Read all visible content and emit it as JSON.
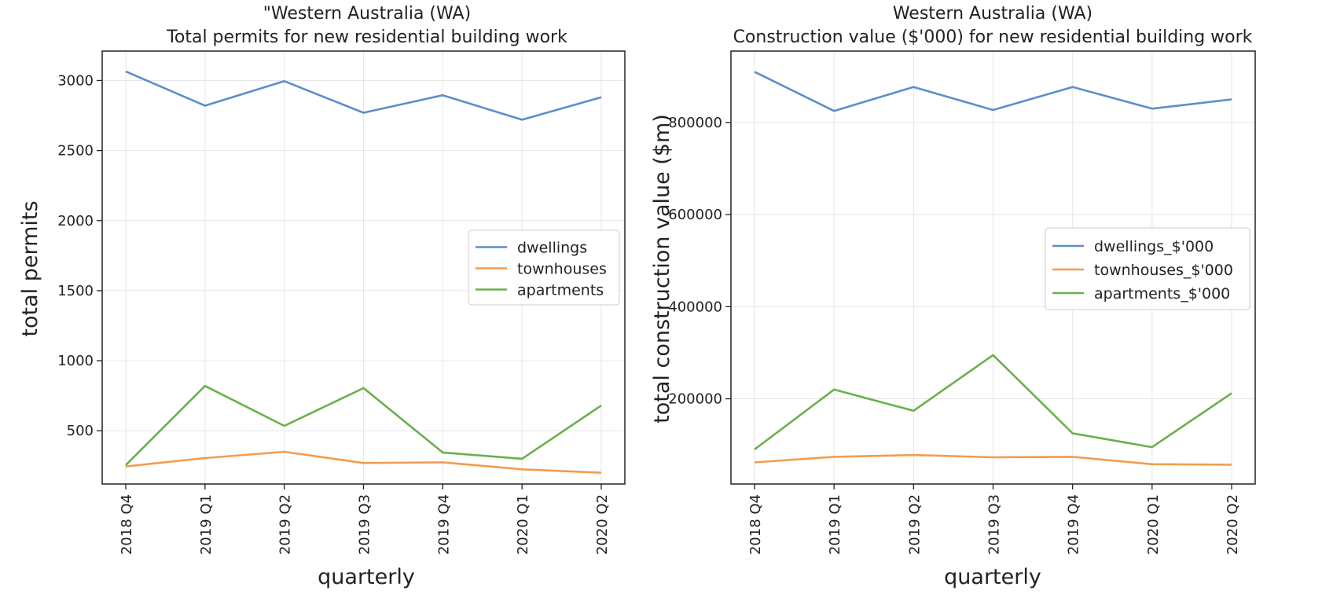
{
  "chart_data": [
    {
      "type": "line",
      "title_line1": "\"Western Australia (WA)",
      "title_line2": "Total permits for new residential building work",
      "xlabel": "quarterly",
      "ylabel": "total permits",
      "categories": [
        "2018 Q4",
        "2019 Q1",
        "2019 Q2",
        "2019 Q3",
        "2019 Q4",
        "2020 Q1",
        "2020 Q2"
      ],
      "yticks": [
        500,
        1000,
        1500,
        2000,
        2500,
        3000
      ],
      "ylim": [
        120,
        3210
      ],
      "grid": true,
      "legend_position": "center-right",
      "series": [
        {
          "name": "dwellings",
          "color": "#5b8fc9",
          "values": [
            3065,
            2820,
            2995,
            2770,
            2895,
            2720,
            2880
          ]
        },
        {
          "name": "townhouses",
          "color": "#f39c4f",
          "values": [
            245,
            305,
            350,
            270,
            275,
            225,
            200
          ]
        },
        {
          "name": "apartments",
          "color": "#6ab04c",
          "values": [
            255,
            820,
            535,
            805,
            345,
            300,
            680
          ]
        }
      ]
    },
    {
      "type": "line",
      "title_line1": "Western Australia (WA)",
      "title_line2": "Construction value ($'000) for new residential building work",
      "xlabel": "quarterly",
      "ylabel": "total construction value ($m)",
      "categories": [
        "2018 Q4",
        "2019 Q1",
        "2019 Q2",
        "2019 Q3",
        "2019 Q4",
        "2020 Q1",
        "2020 Q2"
      ],
      "yticks": [
        200000,
        400000,
        600000,
        800000
      ],
      "ylim": [
        15000,
        955000
      ],
      "grid": true,
      "legend_position": "center-right",
      "series": [
        {
          "name": "dwellings_$'000",
          "color": "#5b8fc9",
          "values": [
            910000,
            825000,
            877000,
            827000,
            877000,
            830000,
            850000
          ]
        },
        {
          "name": "townhouses_$'000",
          "color": "#f39c4f",
          "values": [
            62000,
            74000,
            78000,
            73000,
            74000,
            58000,
            57000
          ]
        },
        {
          "name": "apartments_$'000",
          "color": "#6ab04c",
          "values": [
            90000,
            220000,
            174000,
            295000,
            125000,
            95000,
            212000
          ]
        }
      ]
    }
  ]
}
